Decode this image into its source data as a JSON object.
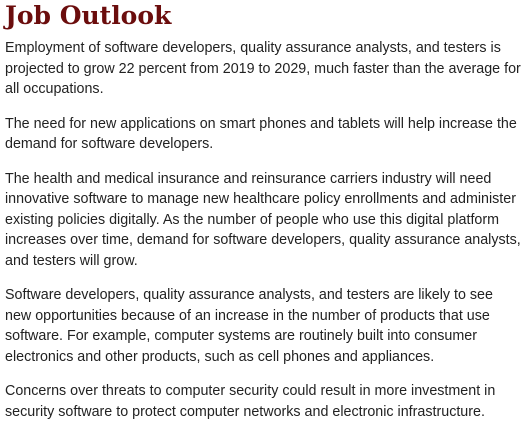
{
  "page": {
    "title": "Job Outlook"
  },
  "paragraphs": [
    "Employment of software developers, quality assurance analysts, and testers is projected to grow 22 percent from 2019 to 2029, much faster than the average for all occupations.",
    "The need for new applications on smart phones and tablets will help increase the demand for software developers.",
    "The health and medical insurance and reinsurance carriers industry will need innovative software to manage new healthcare policy enrollments and administer existing policies digitally. As the number of people who use this digital platform increases over time, demand for software developers, quality assurance analysts, and testers will grow.",
    "Software developers, quality assurance analysts, and testers are likely to see new opportunities because of an increase in the number of products that use software. For example, computer systems are routinely built into consumer electronics and other products, such as cell phones and appliances.",
    "Concerns over threats to computer security could result in more investment in security software to protect computer networks and electronic infrastructure."
  ],
  "colors": {
    "heading": "#6b0d0d",
    "body_text": "#222222",
    "background": "#ffffff"
  }
}
